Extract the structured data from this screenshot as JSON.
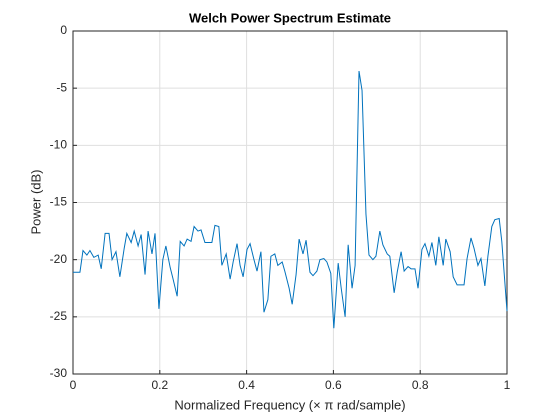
{
  "chart_data": {
    "type": "line",
    "title": "Welch Power Spectrum Estimate",
    "xlabel": "Normalized  Frequency    (× π  rad/sample)",
    "ylabel": "Power (dB)",
    "xlim": [
      0,
      1
    ],
    "ylim": [
      -30,
      0
    ],
    "xticks": [
      0,
      0.2,
      0.4,
      0.6,
      0.8,
      1
    ],
    "yticks": [
      -30,
      -25,
      -20,
      -15,
      -10,
      -5,
      0
    ],
    "grid": true,
    "series": [
      {
        "color": "#0072BD",
        "x": [
          0,
          0.016,
          0.023,
          0.032,
          0.039,
          0.048,
          0.058,
          0.065,
          0.074,
          0.083,
          0.09,
          0.099,
          0.108,
          0.118,
          0.124,
          0.134,
          0.141,
          0.15,
          0.157,
          0.166,
          0.173,
          0.182,
          0.189,
          0.198,
          0.207,
          0.214,
          0.224,
          0.23,
          0.24,
          0.247,
          0.256,
          0.263,
          0.272,
          0.279,
          0.288,
          0.295,
          0.304,
          0.311,
          0.32,
          0.327,
          0.336,
          0.343,
          0.353,
          0.362,
          0.369,
          0.378,
          0.385,
          0.392,
          0.401,
          0.408,
          0.417,
          0.424,
          0.433,
          0.44,
          0.449,
          0.456,
          0.465,
          0.472,
          0.482,
          0.488,
          0.498,
          0.505,
          0.514,
          0.521,
          0.53,
          0.537,
          0.546,
          0.553,
          0.562,
          0.569,
          0.578,
          0.585,
          0.594,
          0.601,
          0.611,
          0.618,
          0.627,
          0.634,
          0.643,
          0.65,
          0.659,
          0.666,
          0.675,
          0.682,
          0.691,
          0.698,
          0.707,
          0.714,
          0.724,
          0.73,
          0.74,
          0.747,
          0.756,
          0.763,
          0.772,
          0.779,
          0.788,
          0.795,
          0.804,
          0.811,
          0.82,
          0.827,
          0.836,
          0.843,
          0.853,
          0.859,
          0.869,
          0.876,
          0.885,
          0.892,
          0.901,
          0.908,
          0.917,
          0.924,
          0.933,
          0.94,
          0.949,
          0.956,
          0.965,
          0.972,
          0.982,
          0.988,
          1
        ],
        "values": [
          -21.1,
          -21.1,
          -19.2,
          -19.6,
          -19.2,
          -19.8,
          -19.6,
          -20.8,
          -17.7,
          -17.7,
          -20,
          -19.3,
          -21.5,
          -19,
          -17.7,
          -18.5,
          -17.5,
          -18.8,
          -17.8,
          -21.3,
          -17.5,
          -19.5,
          -17.7,
          -24.3,
          -20,
          -18.8,
          -20.7,
          -21.6,
          -23.2,
          -18.4,
          -18.8,
          -18.2,
          -18.4,
          -17.1,
          -17.5,
          -17.4,
          -18.5,
          -18.5,
          -18.5,
          -17,
          -17.1,
          -20.5,
          -19.5,
          -21.7,
          -20.2,
          -18.6,
          -20.5,
          -21.5,
          -19.1,
          -18.6,
          -20,
          -21,
          -19.3,
          -24.6,
          -23.5,
          -19.7,
          -19.5,
          -20.5,
          -20.2,
          -21,
          -22.5,
          -23.9,
          -21.3,
          -18.2,
          -19.5,
          -18.3,
          -21.1,
          -21.4,
          -21,
          -20,
          -19.9,
          -20.2,
          -21.2,
          -26,
          -20.3,
          -22.5,
          -25,
          -18.7,
          -22.5,
          -20.5,
          -3.5,
          -5.2,
          -16,
          -19.6,
          -20,
          -19.7,
          -17.5,
          -18.7,
          -19.5,
          -19.7,
          -22.9,
          -21.1,
          -19.3,
          -21,
          -20.6,
          -20.8,
          -20.8,
          -22.5,
          -19.1,
          -18.6,
          -19.7,
          -18.5,
          -20.5,
          -18,
          -20.5,
          -18.2,
          -19.3,
          -21.5,
          -22.2,
          -22.2,
          -22.2,
          -19.9,
          -18.1,
          -19,
          -20.5,
          -19.9,
          -22.3,
          -19.7,
          -17.1,
          -16.5,
          -16.4,
          -18.4,
          -24.5
        ]
      }
    ]
  }
}
